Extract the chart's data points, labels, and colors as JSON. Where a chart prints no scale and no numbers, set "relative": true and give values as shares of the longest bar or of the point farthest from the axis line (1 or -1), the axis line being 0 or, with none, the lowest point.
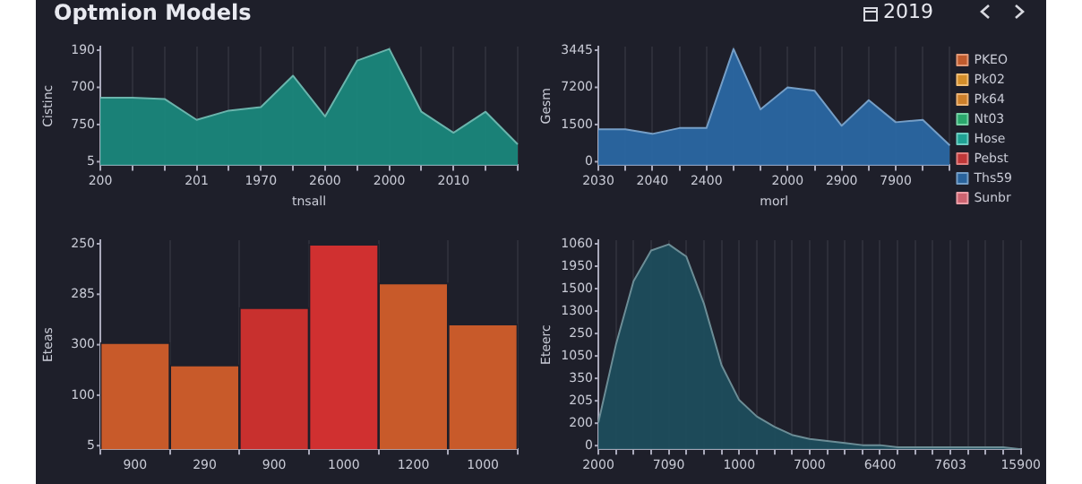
{
  "chart_data": [
    {
      "type": "area",
      "title": "Optmion Models",
      "ylabel": "Cistinc",
      "xlabel": "tnsall",
      "color": "#1a8c80",
      "relative": true,
      "categories": [
        "200",
        null,
        null,
        "201",
        null,
        "1970",
        null,
        "2600",
        null,
        "2000",
        null,
        "2010",
        null,
        null
      ],
      "values": [
        0.58,
        0.58,
        0.57,
        0.39,
        0.47,
        0.5,
        0.77,
        0.42,
        0.9,
        1,
        0.46,
        0.28,
        0.46,
        0.18
      ],
      "annotations": [
        "5",
        "750",
        "700",
        "190"
      ],
      "grid": "x"
    },
    {
      "type": "area",
      "subtitle": "2019",
      "ylabel": "Gesm",
      "xlabel": "morl",
      "legend": "right",
      "relative": true,
      "categories": [
        "2030",
        null,
        "2040",
        null,
        "2400",
        null,
        null,
        "2000",
        null,
        "2900",
        null,
        "7900",
        null,
        null
      ],
      "series": [
        {
          "name": "PKEO",
          "color": "#d2622e",
          "values": [
            null,
            null,
            null,
            null,
            null,
            null,
            null,
            null,
            null,
            null,
            null,
            null,
            null,
            null
          ]
        },
        {
          "name": "Pk02",
          "color": "#e89a2a",
          "values": [
            null,
            null,
            null,
            null,
            null,
            null,
            null,
            null,
            null,
            null,
            null,
            null,
            null,
            null
          ]
        },
        {
          "name": "Pk64",
          "color": "#e08a2a",
          "values": [
            null,
            null,
            null,
            null,
            null,
            null,
            null,
            null,
            null,
            null,
            null,
            null,
            null,
            null
          ]
        },
        {
          "name": "Nt03",
          "color": "#2bb673",
          "values": [
            null,
            null,
            null,
            null,
            null,
            null,
            null,
            null,
            null,
            null,
            null,
            null,
            null,
            null
          ]
        },
        {
          "name": "Hose",
          "color": "#1fb0a0",
          "values": [
            null,
            null,
            null,
            null,
            null,
            null,
            null,
            null,
            null,
            null,
            null,
            null,
            null,
            null
          ]
        },
        {
          "name": "Pebst",
          "color": "#d03a3a",
          "values": [
            null,
            null,
            null,
            null,
            null,
            null,
            null,
            null,
            null,
            null,
            null,
            null,
            null,
            null
          ]
        },
        {
          "name": "Ths59",
          "color": "#2a6aa8",
          "values": [
            0.31,
            0.31,
            0.27,
            0.32,
            0.32,
            1,
            0.48,
            0.67,
            0.64,
            0.34,
            0.56,
            0.37,
            0.39,
            0.17
          ]
        },
        {
          "name": "Sunbr",
          "color": "#e06a78",
          "values": [
            null,
            null,
            null,
            null,
            null,
            null,
            null,
            null,
            null,
            null,
            null,
            null,
            null,
            null
          ]
        }
      ],
      "annotations": [
        "0",
        "1500",
        "7200",
        "3445"
      ],
      "grid": "x"
    },
    {
      "type": "bar",
      "ylabel": "Eteas",
      "relative": true,
      "categories": [
        "900",
        "290",
        "900",
        "1000",
        "1200",
        "1000"
      ],
      "values": [
        0.52,
        0.41,
        0.69,
        1,
        0.81,
        0.61
      ],
      "colors": [
        "#c85a2a",
        "#c85a2a",
        "#c8302e",
        "#d03030",
        "#c85a2a",
        "#c85a2a"
      ],
      "annotations": [
        "5",
        "100",
        "300",
        "285",
        "250"
      ],
      "grid": "x"
    },
    {
      "type": "area",
      "ylabel": "Eteerc",
      "relative": true,
      "categories": [
        "2000",
        null,
        null,
        null,
        "7090",
        null,
        null,
        null,
        "1000",
        null,
        null,
        null,
        "7000",
        null,
        null,
        null,
        "6400",
        null,
        null,
        null,
        "7603",
        null,
        null,
        null,
        "15900"
      ],
      "series": [
        {
          "color": "#1d4f5e",
          "values": [
            0.13,
            0.51,
            0.82,
            0.97,
            1,
            0.94,
            0.71,
            0.41,
            0.24,
            0.16,
            0.11,
            0.07,
            0.05,
            0.04,
            0.03,
            0.02,
            0.02,
            0.01,
            0.01,
            0.01,
            0.01,
            0.01,
            0.01,
            0.01,
            0
          ]
        }
      ],
      "annotations": [
        "0",
        "200",
        "205",
        "350",
        "1050",
        "250",
        "1300",
        "1500",
        "1950",
        "1060"
      ],
      "grid": "x"
    }
  ]
}
